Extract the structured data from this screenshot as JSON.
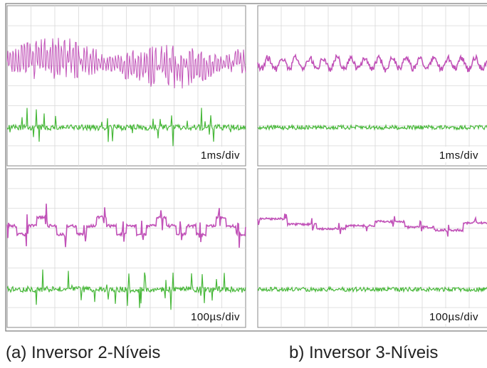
{
  "panels": [
    {
      "scale": "1ms/div"
    },
    {
      "scale": "1ms/div"
    },
    {
      "scale": "100µs/div"
    },
    {
      "scale": "100µs/div"
    }
  ],
  "captions": [
    "(a)  Inversor 2-Níveis",
    "b)  Inversor 3-Níveis"
  ]
}
